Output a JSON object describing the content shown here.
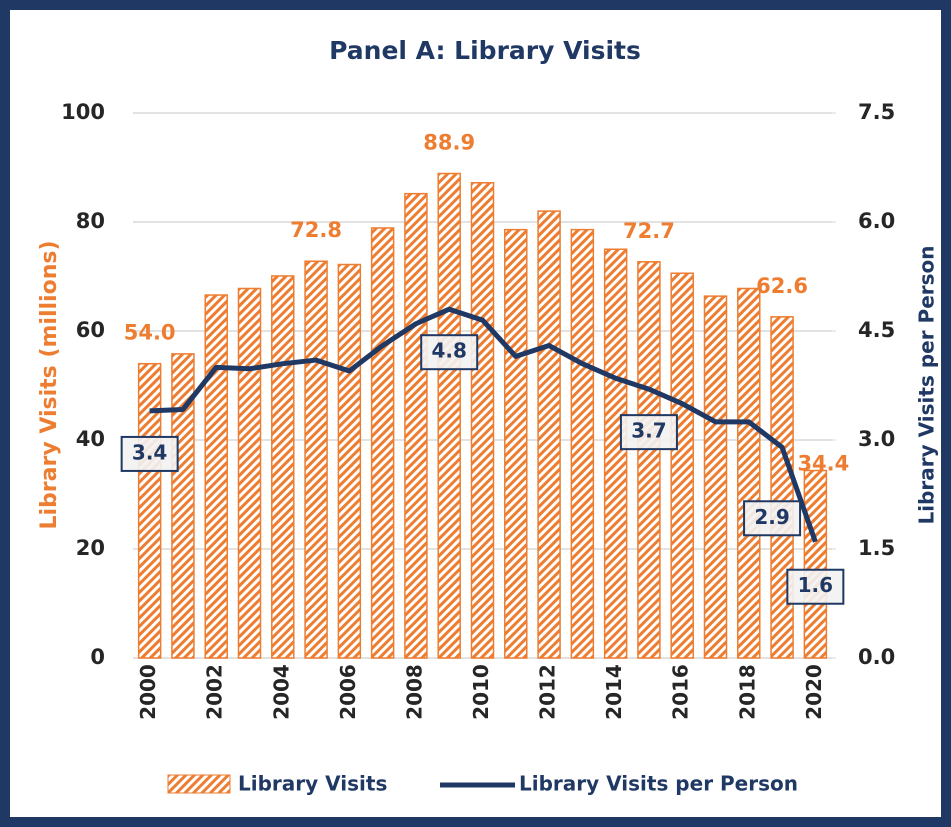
{
  "chart_data": {
    "type": "bar-line",
    "title": "Panel A: Library Visits",
    "categories": [
      "2000",
      null,
      "2002",
      null,
      "2004",
      null,
      "2006",
      null,
      "2008",
      null,
      "2010",
      null,
      "2012",
      null,
      "2014",
      null,
      "2016",
      null,
      "2018",
      null,
      "2020"
    ],
    "series": [
      {
        "name": "Library Visits",
        "type": "bar",
        "color": "#ed7d31",
        "values": [
          54.0,
          55.8,
          66.6,
          67.8,
          70.1,
          72.8,
          72.2,
          78.9,
          85.2,
          88.9,
          87.2,
          78.6,
          82.0,
          78.6,
          75.0,
          72.7,
          70.6,
          66.4,
          67.8,
          62.6,
          34.4
        ],
        "value_labels": [
          "54.0",
          null,
          null,
          null,
          null,
          "72.8",
          null,
          null,
          null,
          "88.9",
          null,
          null,
          null,
          null,
          null,
          "72.7",
          null,
          null,
          null,
          "62.6",
          "34.4"
        ]
      },
      {
        "name": "Library Visits per Person",
        "type": "line",
        "axis": "y2",
        "color": "#1f3864",
        "values": [
          3.4,
          3.42,
          4.0,
          3.98,
          4.05,
          4.1,
          3.95,
          4.3,
          4.6,
          4.8,
          4.65,
          4.15,
          4.3,
          4.05,
          3.85,
          3.7,
          3.5,
          3.25,
          3.25,
          2.9,
          1.6
        ],
        "value_labels": [
          "3.4",
          null,
          null,
          null,
          null,
          null,
          null,
          null,
          null,
          "4.8",
          null,
          null,
          null,
          null,
          null,
          "3.7",
          null,
          null,
          null,
          "2.9",
          "1.6"
        ]
      }
    ],
    "ylabel": "Library Visits (millions)",
    "y2label": "Library Visits per Person",
    "ylim": [
      0,
      100
    ],
    "yticks": [
      0,
      20,
      40,
      60,
      80,
      100
    ],
    "y2lim": [
      0,
      7.5
    ],
    "y2ticks": [
      {
        "value": 0,
        "label": "0.0"
      },
      {
        "value": 1.5,
        "label": "1.5"
      },
      {
        "value": 3,
        "label": "3.0"
      },
      {
        "value": 4.5,
        "label": "4.5"
      },
      {
        "value": 6,
        "label": "6.0"
      },
      {
        "value": 7.5,
        "label": "7.5"
      }
    ],
    "grid": true,
    "legend": "bottom"
  }
}
